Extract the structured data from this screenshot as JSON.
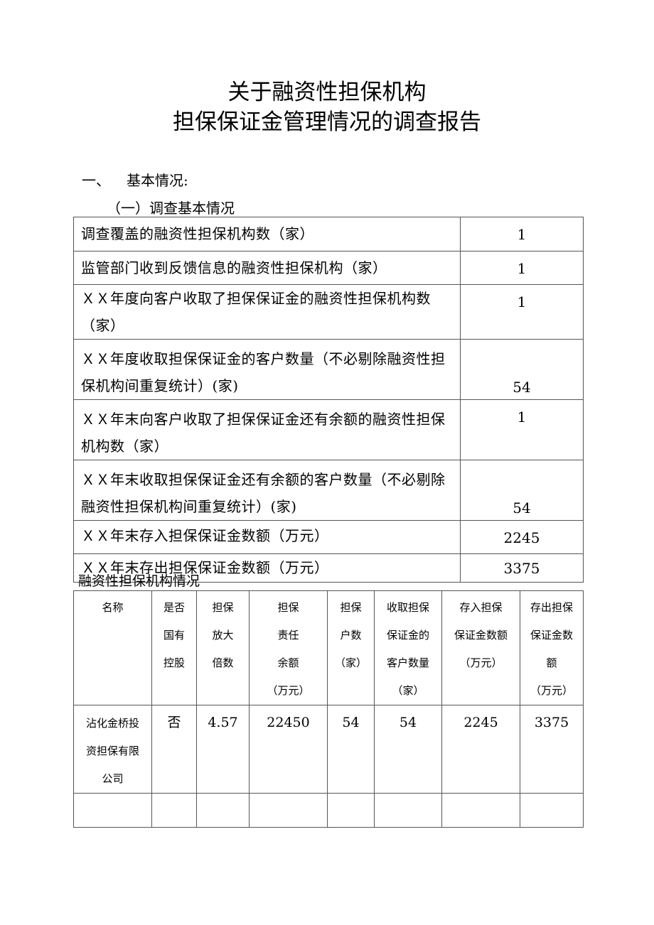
{
  "title": {
    "line1": "关于融资性担保机构",
    "line2": "担保保证金管理情况的调查报告"
  },
  "section1": {
    "number": "一、",
    "label": "基本情况:"
  },
  "subsection1": "（一）调查基本情况",
  "basic_table": [
    {
      "label": "调查覆盖的融资性担保机构数（家）",
      "value": "1"
    },
    {
      "label": "监管部门收到反馈信息的融资性担保机构（家）",
      "value": "1"
    },
    {
      "label": "ＸＸ年度向客户收取了担保保证金的融资性担保机构数（家）",
      "value": "1"
    },
    {
      "label": "ＸＸ年度收取担保保证金的客户数量（不必剔除融资性担保机构间重复统计）(家)",
      "value": "54"
    },
    {
      "label": "ＸＸ年末向客户收取了担保保证金还有余额的融资性担保机构数（家）",
      "value": "1"
    },
    {
      "label": "ＸＸ年末收取担保保证金还有余额的客户数量（不必剔除融资性担保机构间重复统计）(家)",
      "value": "54"
    },
    {
      "label": "ＸＸ年末存入担保保证金数额（万元）",
      "value": "2245"
    },
    {
      "label": "ＸＸ年末存出担保保证金数额（万元）",
      "value": "3375"
    }
  ],
  "institution_section_label": "融资性担保机构情况",
  "institution_table": {
    "headers": [
      [
        "名称"
      ],
      [
        "是否",
        "国有",
        "控股"
      ],
      [
        "担保",
        "放大",
        "倍数"
      ],
      [
        "担保",
        "责任",
        "余额",
        "（万元）"
      ],
      [
        "担保",
        "户数",
        "（家）"
      ],
      [
        "收取担保",
        "保证金的",
        "客户数量",
        "（家）"
      ],
      [
        "存入担保",
        "保证金数额",
        "（万元）"
      ],
      [
        "存出担保",
        "保证金数",
        "额",
        "（万元）"
      ]
    ],
    "rows": [
      {
        "name": [
          "沾化金桥投",
          "资担保有限",
          "公司"
        ],
        "state_owned": "否",
        "leverage": "4.57",
        "guarantee_balance": "22450",
        "guarantee_households": "54",
        "deposit_customers": "54",
        "deposits_in": "2245",
        "deposits_out": "3375"
      }
    ]
  }
}
